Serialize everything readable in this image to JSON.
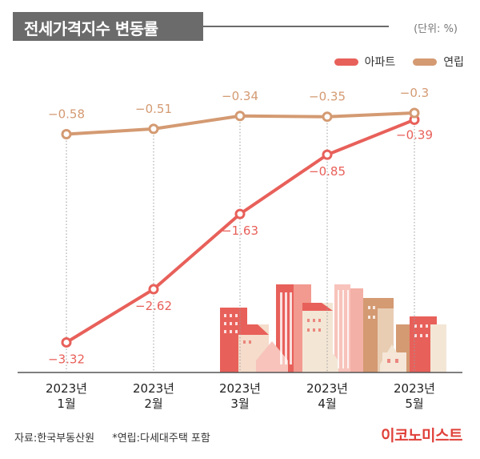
{
  "header": {
    "title": "전세가격지수 변동률",
    "unit": "(단위: %)"
  },
  "footer": {
    "source": "자료:한국부동산원",
    "note": "*연립:다세대주택 포함",
    "brand": "이코노미스트"
  },
  "colors": {
    "apartment": "#e8605a",
    "rowhouse": "#d49a72",
    "title_bg": "#6b6b6b",
    "brand": "#e0403a"
  },
  "chart_data": {
    "type": "line",
    "x": [
      "2023년 1월",
      "2023년 2월",
      "2023년 3월",
      "2023년 4월",
      "2023년 5월"
    ],
    "x_ticks": [
      {
        "year": "2023년",
        "month": "1월"
      },
      {
        "year": "2023년",
        "month": "2월"
      },
      {
        "year": "2023년",
        "month": "3월"
      },
      {
        "year": "2023년",
        "month": "4월"
      },
      {
        "year": "2023년",
        "month": "5월"
      }
    ],
    "series": [
      {
        "name": "아파트",
        "values": [
          -3.32,
          -2.62,
          -1.63,
          -0.85,
          -0.39
        ],
        "labels": [
          "-3.32",
          "-2.62",
          "-1.63",
          "-0.85",
          "-0.39"
        ]
      },
      {
        "name": "연립",
        "values": [
          -0.58,
          -0.51,
          -0.34,
          -0.35,
          -0.3
        ],
        "labels": [
          "-0.58",
          "-0.51",
          "-0.34",
          "-0.35",
          "-0.3"
        ]
      }
    ],
    "ylim": [
      -3.6,
      -0.1
    ],
    "grid": false,
    "legend_position": "top-right"
  }
}
